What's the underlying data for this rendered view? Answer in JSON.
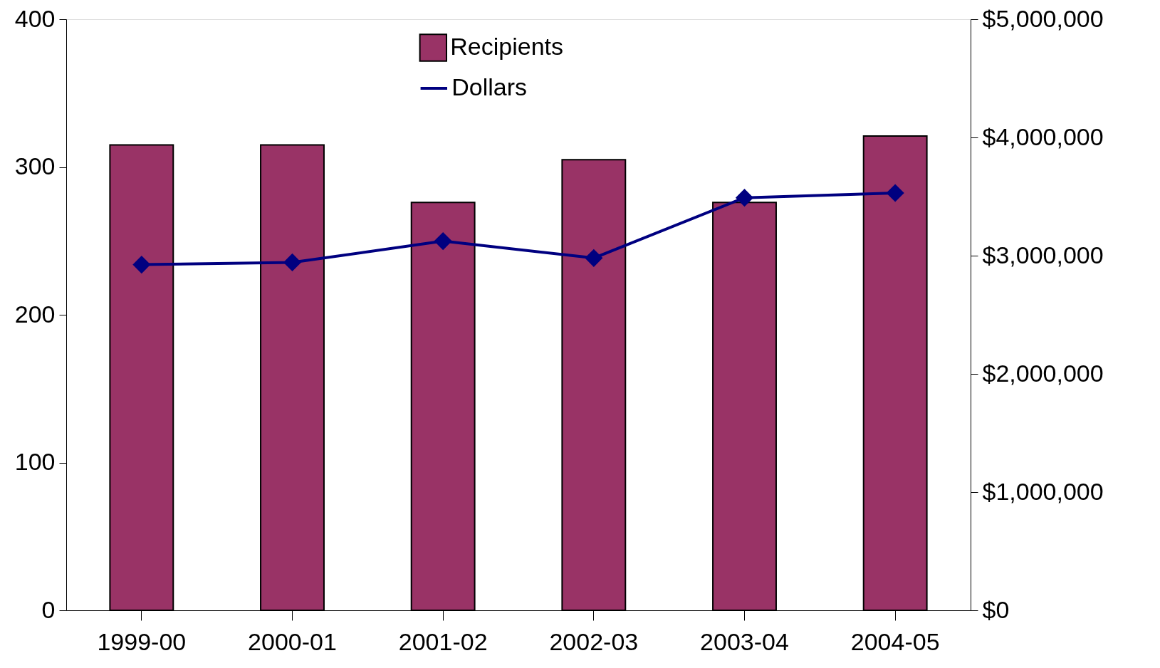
{
  "chart_data": {
    "type": "bar",
    "categories": [
      "1999-00",
      "2000-01",
      "2001-02",
      "2002-03",
      "2003-04",
      "2004-05"
    ],
    "series": [
      {
        "name": "Recipients",
        "color": "#993366",
        "values": [
          315,
          315,
          276,
          305,
          276,
          321
        ]
      },
      {
        "name": "Dollars",
        "type": "line",
        "axis": "y2",
        "color": "#000080",
        "marker": "diamond",
        "values": [
          2924000,
          2943000,
          3123000,
          2980000,
          3490000,
          3530000
        ]
      }
    ],
    "ylim": [
      0,
      400
    ],
    "yticks": [
      0,
      100,
      200,
      300,
      400
    ],
    "y2lim": [
      0,
      5000000
    ],
    "y2ticks": [
      {
        "value": 0,
        "label": "$0"
      },
      {
        "value": 1000000,
        "label": "$1,000,000"
      },
      {
        "value": 2000000,
        "label": "$2,000,000"
      },
      {
        "value": 3000000,
        "label": "$3,000,000"
      },
      {
        "value": 4000000,
        "label": "$4,000,000"
      },
      {
        "value": 5000000,
        "label": "$5,000,000"
      }
    ],
    "grid": false,
    "legend": "top"
  }
}
